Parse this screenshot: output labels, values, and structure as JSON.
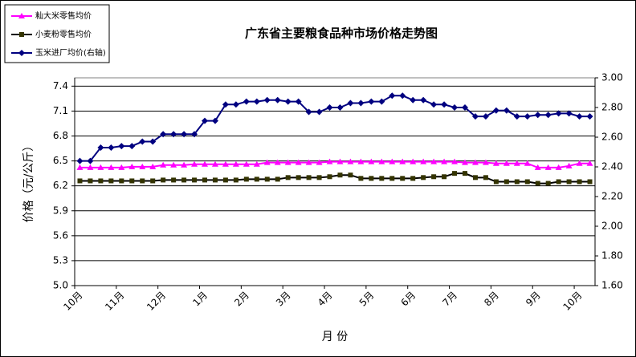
{
  "chart_data": {
    "type": "line",
    "title": "广东省主要粮食品种市场价格走势图",
    "x_label": "月  份",
    "y_label": "价格（元/公斤）",
    "categories": [
      "10月",
      null,
      null,
      null,
      "11月",
      null,
      null,
      null,
      "12月",
      null,
      null,
      null,
      "1月",
      null,
      null,
      null,
      "2月",
      null,
      null,
      null,
      "3月",
      null,
      null,
      null,
      "4月",
      null,
      null,
      null,
      "5月",
      null,
      null,
      null,
      "6月",
      null,
      null,
      null,
      "7月",
      null,
      null,
      null,
      "8月",
      null,
      null,
      null,
      "9月",
      null,
      null,
      null,
      "10月",
      null
    ],
    "ylim": [
      5.0,
      7.5
    ],
    "yticks": [
      {
        "value": 5.0,
        "label": "5.0"
      },
      {
        "value": 5.3,
        "label": "5.3"
      },
      {
        "value": 5.6,
        "label": "5.6"
      },
      {
        "value": 5.9,
        "label": "5.9"
      },
      {
        "value": 6.2,
        "label": "6.2"
      },
      {
        "value": 6.5,
        "label": "6.5"
      },
      {
        "value": 6.8,
        "label": "6.8"
      },
      {
        "value": 7.1,
        "label": "7.1"
      },
      {
        "value": 7.4,
        "label": "7.4"
      }
    ],
    "y2lim": [
      1.6,
      3.0
    ],
    "y2ticks": [
      {
        "value": 1.6,
        "label": "1.60"
      },
      {
        "value": 1.8,
        "label": "1.80"
      },
      {
        "value": 2.0,
        "label": "2.00"
      },
      {
        "value": 2.2,
        "label": "2.20"
      },
      {
        "value": 2.4,
        "label": "2.40"
      },
      {
        "value": 2.6,
        "label": "2.60"
      },
      {
        "value": 2.8,
        "label": "2.80"
      },
      {
        "value": 3.0,
        "label": "3.00"
      }
    ],
    "grid": true,
    "series": [
      {
        "name": "籼大米零售均价",
        "color": "#ff00ff",
        "line_color": "#ff00ff",
        "marker": "triangle",
        "values": [
          6.42,
          6.42,
          6.42,
          6.42,
          6.42,
          6.43,
          6.43,
          6.43,
          6.45,
          6.45,
          6.45,
          6.46,
          6.46,
          6.46,
          6.46,
          6.46,
          6.46,
          6.46,
          6.48,
          6.48,
          6.48,
          6.48,
          6.48,
          6.48,
          6.49,
          6.49,
          6.49,
          6.49,
          6.49,
          6.49,
          6.49,
          6.49,
          6.49,
          6.49,
          6.49,
          6.49,
          6.49,
          6.48,
          6.48,
          6.48,
          6.47,
          6.47,
          6.47,
          6.47,
          6.42,
          6.42,
          6.42,
          6.44,
          6.47,
          6.47
        ]
      },
      {
        "name": "小麦粉零售均价",
        "color": "#333300",
        "line_color": "#000000",
        "marker": "square",
        "values": [
          6.26,
          6.26,
          6.26,
          6.26,
          6.26,
          6.26,
          6.26,
          6.26,
          6.27,
          6.27,
          6.27,
          6.27,
          6.27,
          6.27,
          6.27,
          6.27,
          6.28,
          6.28,
          6.28,
          6.28,
          6.3,
          6.3,
          6.3,
          6.3,
          6.31,
          6.33,
          6.33,
          6.29,
          6.29,
          6.29,
          6.29,
          6.29,
          6.29,
          6.3,
          6.31,
          6.31,
          6.35,
          6.35,
          6.3,
          6.3,
          6.25,
          6.25,
          6.25,
          6.25,
          6.23,
          6.23,
          6.25,
          6.25,
          6.25,
          6.25
        ]
      },
      {
        "name": "玉米进厂均价(右轴)",
        "color": "#000080",
        "line_color": "#000080",
        "marker": "diamond",
        "axis": "y2",
        "values": [
          2.44,
          2.44,
          2.53,
          2.53,
          2.54,
          2.54,
          2.57,
          2.57,
          2.62,
          2.62,
          2.62,
          2.62,
          2.71,
          2.71,
          2.82,
          2.82,
          2.84,
          2.84,
          2.85,
          2.85,
          2.84,
          2.84,
          2.77,
          2.77,
          2.8,
          2.8,
          2.83,
          2.83,
          2.84,
          2.84,
          2.88,
          2.88,
          2.85,
          2.85,
          2.82,
          2.82,
          2.8,
          2.8,
          2.74,
          2.74,
          2.78,
          2.78,
          2.74,
          2.74,
          2.75,
          2.75,
          2.76,
          2.76,
          2.74,
          2.74
        ]
      }
    ]
  }
}
